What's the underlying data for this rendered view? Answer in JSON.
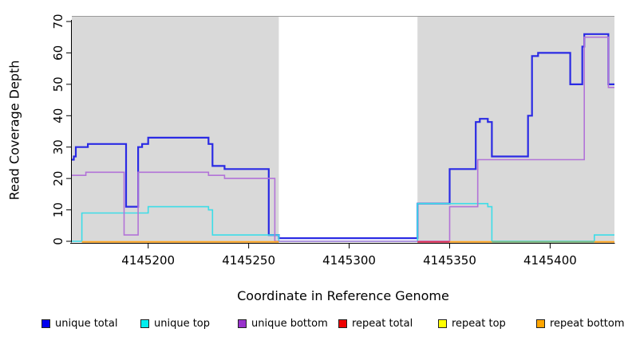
{
  "figure": {
    "x_axis": {
      "label": "Coordinate in Reference Genome"
    },
    "y_axis": {
      "label": "Read Coverage Depth"
    }
  },
  "legend": {
    "items": [
      {
        "label": "unique total",
        "color": "#0000EE"
      },
      {
        "label": "unique top",
        "color": "#00EEEE"
      },
      {
        "label": "unique bottom",
        "color": "#9932CC"
      },
      {
        "label": "repeat total",
        "color": "#EE0000"
      },
      {
        "label": "repeat top",
        "color": "#FFFF00"
      },
      {
        "label": "repeat bottom",
        "color": "#FFA500"
      }
    ]
  },
  "chart_data": {
    "type": "line",
    "step": true,
    "title": "",
    "xlabel": "Coordinate in Reference Genome",
    "ylabel": "Read Coverage Depth",
    "x_domain": [
      4145162,
      4145432
    ],
    "y_domain": [
      0,
      71
    ],
    "x_ticks": [
      4145200,
      4145250,
      4145300,
      4145350,
      4145400
    ],
    "y_ticks": [
      0,
      10,
      20,
      30,
      40,
      50,
      60,
      70
    ],
    "grid": false,
    "legend_position": "bottom",
    "shaded_regions": [
      {
        "from": 4145162,
        "to": 4145265,
        "color": "#D9D9D9"
      },
      {
        "from": 4145334,
        "to": 4145432,
        "color": "#D9D9D9"
      }
    ],
    "series": [
      {
        "name": "unique total",
        "color": "#2A2AE4",
        "width": 2.2,
        "points": [
          [
            4145162,
            26
          ],
          [
            4145163,
            27
          ],
          [
            4145164,
            30
          ],
          [
            4145170,
            31
          ],
          [
            4145189,
            11
          ],
          [
            4145195,
            30
          ],
          [
            4145197,
            31
          ],
          [
            4145200,
            33
          ],
          [
            4145230,
            31
          ],
          [
            4145232,
            24
          ],
          [
            4145238,
            23
          ],
          [
            4145260,
            2
          ],
          [
            4145265,
            1
          ],
          [
            4145334,
            12
          ],
          [
            4145350,
            23
          ],
          [
            4145363,
            38
          ],
          [
            4145365,
            39
          ],
          [
            4145369,
            38
          ],
          [
            4145371,
            27
          ],
          [
            4145389,
            40
          ],
          [
            4145391,
            59
          ],
          [
            4145394,
            60
          ],
          [
            4145410,
            50
          ],
          [
            4145416,
            62
          ],
          [
            4145417,
            66
          ],
          [
            4145429,
            50
          ]
        ]
      },
      {
        "name": "unique top",
        "color": "#3CDDE8",
        "width": 1.6,
        "points": [
          [
            4145162,
            0
          ],
          [
            4145167,
            9
          ],
          [
            4145200,
            11
          ],
          [
            4145230,
            10
          ],
          [
            4145232,
            2
          ],
          [
            4145265,
            0
          ],
          [
            4145334,
            12
          ],
          [
            4145369,
            11
          ],
          [
            4145371,
            0
          ],
          [
            4145422,
            2
          ]
        ]
      },
      {
        "name": "unique bottom",
        "color": "#B273D8",
        "width": 1.6,
        "points": [
          [
            4145162,
            21
          ],
          [
            4145169,
            22
          ],
          [
            4145188,
            2
          ],
          [
            4145195,
            22
          ],
          [
            4145230,
            21
          ],
          [
            4145238,
            20
          ],
          [
            4145263,
            0
          ],
          [
            4145350,
            11
          ],
          [
            4145364,
            26
          ],
          [
            4145417,
            65
          ],
          [
            4145429,
            49
          ]
        ]
      }
    ],
    "baseline_segments": [
      {
        "series": "repeat bottom",
        "color": "#FFA520",
        "value": 0,
        "from": 4145167,
        "to": 4145265
      },
      {
        "series": "repeat total",
        "color": "#E02D50",
        "value": 0,
        "from": 4145334,
        "to": 4145350
      },
      {
        "series": "repeat bottom",
        "color": "#FFA520",
        "value": 0,
        "from": 4145350,
        "to": 4145371
      },
      {
        "series": "repeat top",
        "color": "#7CB87C",
        "value": 0,
        "from": 4145371,
        "to": 4145422
      },
      {
        "series": "repeat bottom",
        "color": "#FFA520",
        "value": 0,
        "from": 4145422,
        "to": 4145432
      }
    ]
  }
}
